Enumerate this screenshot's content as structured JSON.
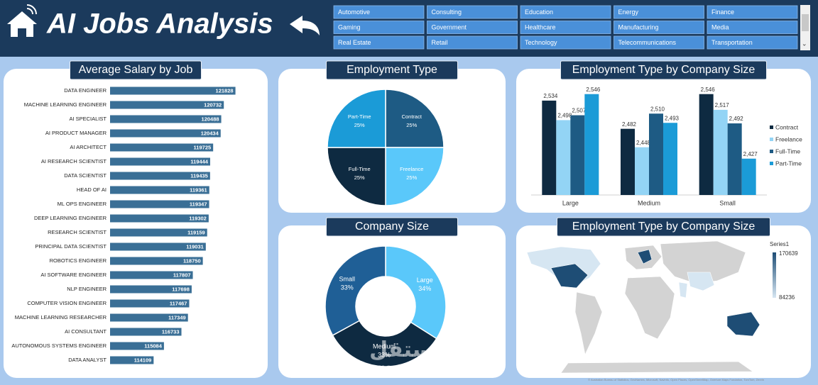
{
  "header": {
    "title": "AI Jobs Analysis"
  },
  "slicer": {
    "items": [
      "Automotive",
      "Consulting",
      "Education",
      "Energy",
      "Finance",
      "Gaming",
      "Government",
      "Healthcare",
      "Manufacturing",
      "Media",
      "Real Estate",
      "Retail",
      "Technology",
      "Telecommunications",
      "Transportation"
    ]
  },
  "chart_data": [
    {
      "type": "hbar",
      "title": "Average Salary by Job",
      "color": "#3a6f96",
      "categories": [
        "DATA ENGINEER",
        "MACHINE LEARNING ENGINEER",
        "AI SPECIALIST",
        "AI PRODUCT MANAGER",
        "AI ARCHITECT",
        "AI RESEARCH SCIENTIST",
        "DATA SCIENTIST",
        "HEAD OF AI",
        "ML OPS ENGINEER",
        "DEEP LEARNING ENGINEER",
        "RESEARCH SCIENTIST",
        "PRINCIPAL DATA SCIENTIST",
        "ROBOTICS ENGINEER",
        "AI SOFTWARE ENGINEER",
        "NLP ENGINEER",
        "COMPUTER VISION ENGINEER",
        "MACHINE LEARNING RESEARCHER",
        "AI CONSULTANT",
        "AUTONOMOUS SYSTEMS ENGINEER",
        "DATA ANALYST"
      ],
      "values": [
        121828,
        120732,
        120488,
        120434,
        119725,
        119444,
        119435,
        119361,
        119347,
        119302,
        119159,
        119031,
        118750,
        117807,
        117698,
        117467,
        117349,
        116733,
        115084,
        114109
      ],
      "xlim": [
        110000,
        124000
      ]
    },
    {
      "type": "pie",
      "title": "Employment Type",
      "categories": [
        "Contract",
        "Freelance",
        "Full-Time",
        "Part-Time"
      ],
      "values": [
        25,
        25,
        25,
        25
      ],
      "value_labels": [
        "25%",
        "25%",
        "25%",
        "25%"
      ],
      "colors": [
        "#1e5b84",
        "#5ac8fa",
        "#0e2a41",
        "#1b9bd7"
      ]
    },
    {
      "type": "bar",
      "title": "Employment Type by Company Size",
      "categories": [
        "Large",
        "Medium",
        "Small"
      ],
      "series": [
        {
          "name": "Contract",
          "color": "#0e2a41",
          "values": [
            2534,
            2482,
            2546
          ],
          "value_labels": [
            "2,534",
            "2,482",
            "2,546"
          ]
        },
        {
          "name": "Freelance",
          "color": "#93d4f5",
          "values": [
            2498,
            2448,
            2517
          ],
          "value_labels": [
            "2,498",
            "2,448",
            "2,517"
          ]
        },
        {
          "name": "Full-Time",
          "color": "#1e5b84",
          "values": [
            2507,
            2510,
            2492
          ],
          "value_labels": [
            "2,507",
            "2,510",
            "2,492"
          ]
        },
        {
          "name": "Part-Time",
          "color": "#1b9bd7",
          "values": [
            2546,
            2493,
            2427
          ],
          "value_labels": [
            "2,546",
            "2,493",
            "2,427"
          ]
        }
      ],
      "ylim": [
        2360,
        2560
      ],
      "legend": "right"
    },
    {
      "type": "donut",
      "title": "Company Size",
      "categories": [
        "Large",
        "Medium",
        "Small"
      ],
      "values": [
        34,
        33,
        33
      ],
      "value_labels": [
        "34%",
        "33%",
        "33%"
      ],
      "colors": [
        "#5ac8fa",
        "#0e2a41",
        "#1f5f96"
      ]
    },
    {
      "type": "map",
      "title": "Employment Type by Company Size",
      "legend_title": "Series1",
      "color_range": [
        84236,
        170639
      ],
      "colors": [
        "#d6e6f2",
        "#1e4d75"
      ],
      "attribution": "© Australian Bureau of Statistics, GeoNames, Microsoft, Navinfo, Open Places, OpenStreetMap, Overture Maps Fundation, TomTom, Zenrin"
    }
  ]
}
